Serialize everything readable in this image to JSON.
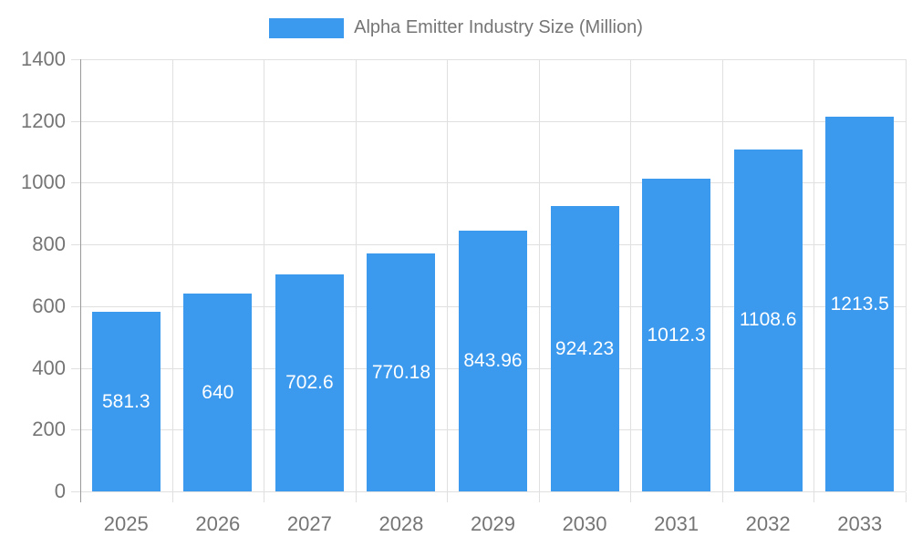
{
  "window": {
    "background": "#FFFFFF"
  },
  "legend": {
    "label": "Alpha Emitter Industry Size (Million)"
  },
  "colors": {
    "bar": "#3B99EE",
    "bar_label": "#FFFFFF",
    "axis_line": "#999999",
    "grid_line": "#E0E0E0",
    "text": "#757575",
    "background": "#FFFFFF"
  },
  "chart_data": {
    "type": "bar",
    "title": "",
    "series_name": "Alpha Emitter Industry Size (Million)",
    "categories": [
      "2025",
      "2026",
      "2027",
      "2028",
      "2029",
      "2030",
      "2031",
      "2032",
      "2033"
    ],
    "values": [
      581.3,
      640,
      702.6,
      770.18,
      843.96,
      924.23,
      1012.3,
      1108.6,
      1213.5
    ],
    "bar_labels": [
      "581.3",
      "640",
      "702.6",
      "770.18",
      "843.96",
      "924.23",
      "1012.3",
      "1108.6",
      "1213.5"
    ],
    "xlabel": "",
    "ylabel": "",
    "ylim": [
      0,
      1400
    ],
    "yticks": [
      0,
      200,
      400,
      600,
      800,
      1000,
      1200,
      1400
    ],
    "grid": true,
    "legend_position": "top-center",
    "value_label_position": "center-inside",
    "value_label_color": "#FFFFFF"
  }
}
